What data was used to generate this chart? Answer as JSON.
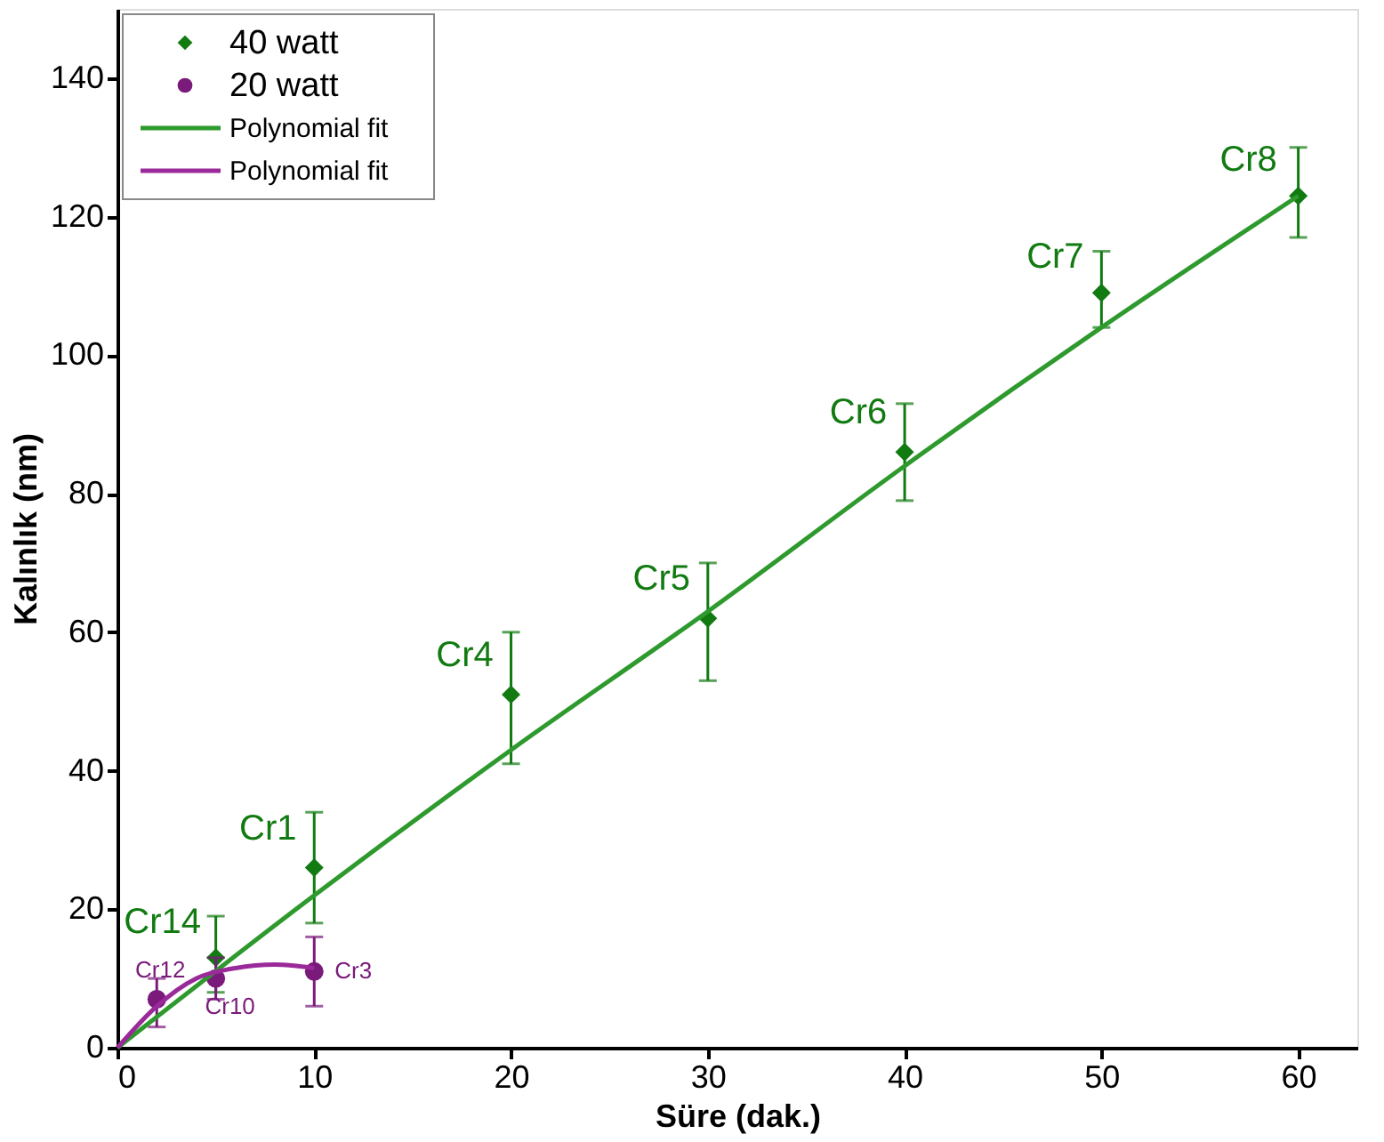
{
  "chart_data": {
    "type": "scatter",
    "xlabel": "Süre (dak.)",
    "ylabel": "Kalınlık (nm)",
    "xlim": [
      0,
      63
    ],
    "ylim": [
      0,
      150
    ],
    "xticks": [
      0,
      10,
      20,
      30,
      40,
      50,
      60
    ],
    "yticks": [
      0,
      20,
      40,
      60,
      80,
      100,
      120,
      140
    ],
    "grid": false,
    "legend": "top left",
    "series": [
      {
        "name": "40 watt",
        "type": "scatter",
        "marker": "diamond",
        "color": "#117a11",
        "x": [
          5,
          10,
          20,
          30,
          40,
          50,
          60
        ],
        "values": [
          13,
          26,
          51,
          62,
          86,
          109,
          123
        ],
        "errors": [
          [
            8,
            19
          ],
          [
            18,
            34
          ],
          [
            41,
            60
          ],
          [
            53,
            70
          ],
          [
            79,
            93
          ],
          [
            104,
            115
          ],
          [
            117,
            130
          ]
        ]
      },
      {
        "name": "20 watt",
        "type": "scatter",
        "marker": "circle",
        "color": "#7a1a7a",
        "x": [
          2,
          5,
          10
        ],
        "values": [
          7,
          10,
          11
        ],
        "errors": [
          [
            3,
            10
          ],
          [
            7,
            13
          ],
          [
            6,
            16
          ]
        ]
      },
      {
        "name": "Polynomial fit",
        "type": "line",
        "line_style": "solid",
        "color": "#2e9a2e",
        "x": [
          0,
          10,
          20,
          30,
          40,
          50,
          60
        ],
        "values": [
          0,
          22,
          43,
          63,
          84,
          104,
          123
        ]
      },
      {
        "name": "Polynomial fit",
        "type": "line",
        "line_style": "solid",
        "color": "#9a2a9a",
        "x": [
          0,
          2,
          4,
          6,
          8,
          10
        ],
        "values": [
          0,
          6,
          10,
          11.5,
          12,
          11.5
        ]
      }
    ],
    "annotations": [
      {
        "text": "Cr14",
        "x": 5,
        "y": 13
      },
      {
        "text": "Cr1",
        "x": 10,
        "y": 26
      },
      {
        "text": "Cr4",
        "x": 20,
        "y": 51
      },
      {
        "text": "Cr5",
        "x": 30,
        "y": 62
      },
      {
        "text": "Cr6",
        "x": 40,
        "y": 86
      },
      {
        "text": "Cr7",
        "x": 50,
        "y": 109
      },
      {
        "text": "Cr8",
        "x": 60,
        "y": 123
      },
      {
        "text": "Cr12",
        "x": 2,
        "y": 7
      },
      {
        "text": "Cr10",
        "x": 5,
        "y": 10
      },
      {
        "text": "Cr3",
        "x": 10,
        "y": 11
      }
    ]
  }
}
